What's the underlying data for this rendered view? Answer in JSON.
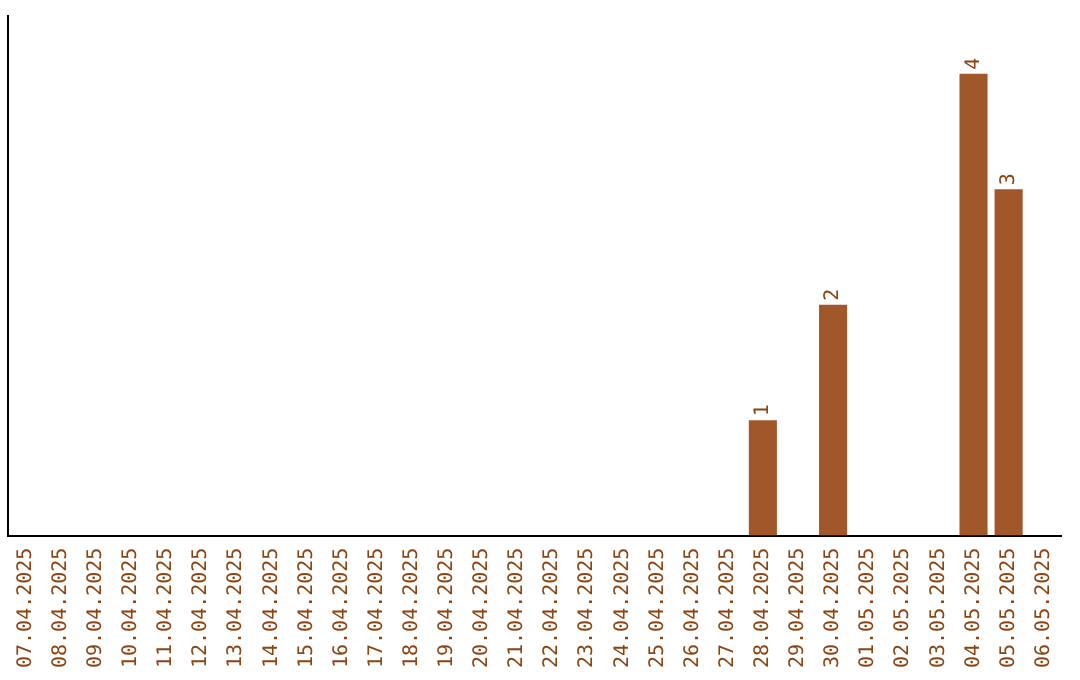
{
  "chart_data": {
    "type": "bar",
    "categories": [
      "07.04.2025",
      "08.04.2025",
      "09.04.2025",
      "10.04.2025",
      "11.04.2025",
      "12.04.2025",
      "13.04.2025",
      "14.04.2025",
      "15.04.2025",
      "16.04.2025",
      "17.04.2025",
      "18.04.2025",
      "19.04.2025",
      "20.04.2025",
      "21.04.2025",
      "22.04.2025",
      "23.04.2025",
      "24.04.2025",
      "25.04.2025",
      "26.04.2025",
      "27.04.2025",
      "28.04.2025",
      "29.04.2025",
      "30.04.2025",
      "01.05.2025",
      "02.05.2025",
      "03.05.2025",
      "04.05.2025",
      "05.05.2025",
      "06.05.2025"
    ],
    "values": [
      null,
      null,
      null,
      null,
      null,
      null,
      null,
      null,
      null,
      null,
      null,
      null,
      null,
      null,
      null,
      null,
      null,
      null,
      null,
      null,
      null,
      1,
      null,
      2,
      null,
      null,
      null,
      4,
      3,
      null
    ],
    "data_labels": true,
    "color": "#a0582a",
    "tick_labels": "x",
    "grid": false,
    "legend": false
  }
}
